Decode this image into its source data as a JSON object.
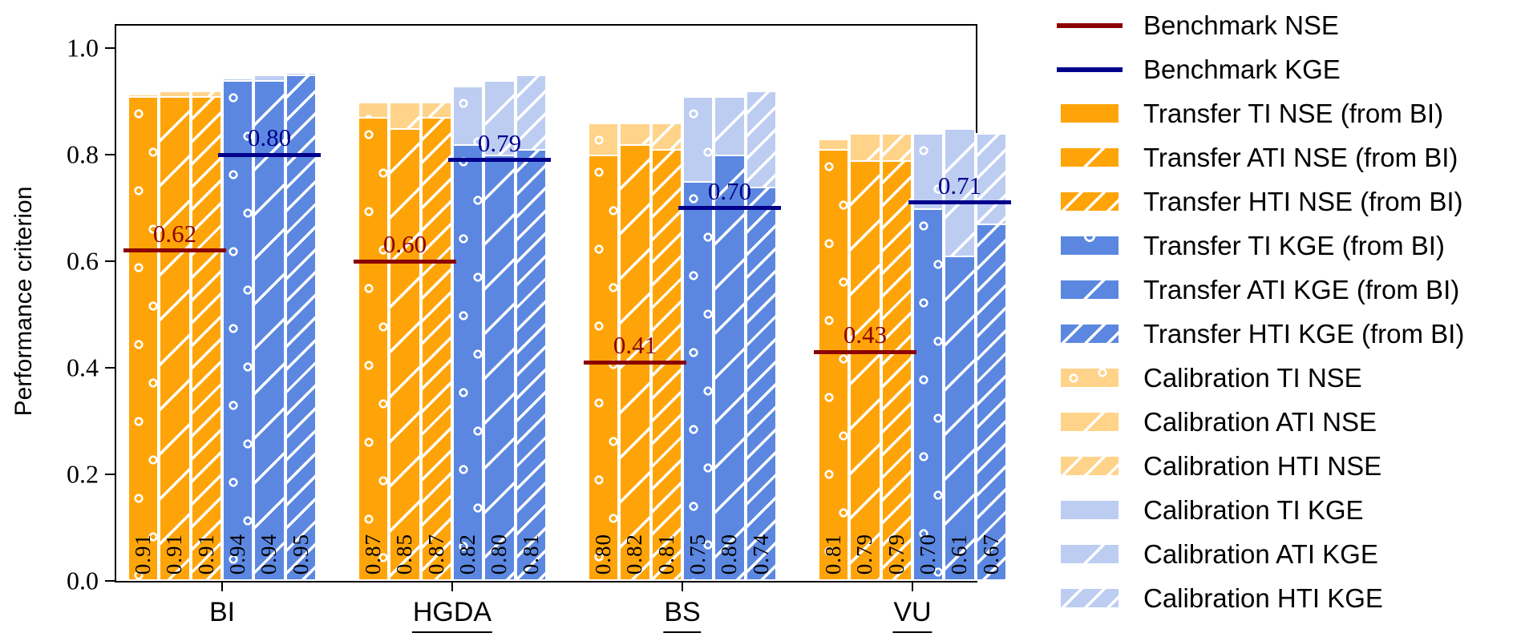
{
  "chart_data": {
    "type": "bar",
    "title": "",
    "ylabel": "Performance criterion",
    "ylim": [
      0.0,
      1.042
    ],
    "yticks": [
      0.0,
      0.2,
      0.4,
      0.6,
      0.8,
      1.0
    ],
    "grid": false,
    "legend_position": "right",
    "bar_order": [
      "TI NSE",
      "ATI NSE",
      "HTI NSE",
      "TI KGE",
      "ATI KGE",
      "HTI KGE"
    ],
    "hatch_by_index": [
      "circles",
      "sparse-diagonal",
      "dense-diagonal",
      "circles",
      "sparse-diagonal",
      "dense-diagonal"
    ],
    "groups": [
      {
        "category": "BI",
        "underlined": false,
        "transfer_values": [
          0.91,
          0.91,
          0.91,
          0.94,
          0.94,
          0.95
        ],
        "calibration_values": [
          0.915,
          0.92,
          0.92,
          0.945,
          0.95,
          0.955
        ],
        "benchmark_nse": 0.62,
        "benchmark_kge": 0.8
      },
      {
        "category": "HGDA",
        "underlined": true,
        "transfer_values": [
          0.87,
          0.85,
          0.87,
          0.82,
          0.8,
          0.81
        ],
        "calibration_values": [
          0.9,
          0.9,
          0.9,
          0.93,
          0.94,
          0.95
        ],
        "benchmark_nse": 0.6,
        "benchmark_kge": 0.79
      },
      {
        "category": "BS",
        "underlined": true,
        "transfer_values": [
          0.8,
          0.82,
          0.81,
          0.75,
          0.8,
          0.74
        ],
        "calibration_values": [
          0.86,
          0.86,
          0.86,
          0.91,
          0.91,
          0.92
        ],
        "benchmark_nse": 0.41,
        "benchmark_kge": 0.7
      },
      {
        "category": "VU",
        "underlined": true,
        "transfer_values": [
          0.81,
          0.79,
          0.79,
          0.7,
          0.61,
          0.67
        ],
        "calibration_values": [
          0.83,
          0.84,
          0.84,
          0.84,
          0.85,
          0.84
        ],
        "benchmark_nse": 0.43,
        "benchmark_kge": 0.71
      }
    ]
  },
  "colors": {
    "transfer_nse": "#FFA408",
    "calibration_nse": "#FFD389",
    "transfer_kge": "#5B87E0",
    "calibration_kge": "#BDCDF2",
    "benchmark_nse": "#8B0000",
    "benchmark_kge": "#00008B",
    "bar_edge": "#FFFFFF",
    "axis": "#000000"
  },
  "legend": {
    "items": [
      {
        "label": "Benchmark NSE",
        "swatch": "line",
        "color": "benchmark_nse",
        "hatch": "none"
      },
      {
        "label": "Benchmark KGE",
        "swatch": "line",
        "color": "benchmark_kge",
        "hatch": "none"
      },
      {
        "label": "Transfer TI NSE (from BI)",
        "swatch": "rect",
        "color": "transfer_nse",
        "hatch": "none"
      },
      {
        "label": "Transfer ATI NSE (from BI)",
        "swatch": "rect",
        "color": "transfer_nse",
        "hatch": "d1"
      },
      {
        "label": "Transfer HTI NSE (from BI)",
        "swatch": "rect",
        "color": "transfer_nse",
        "hatch": "d2"
      },
      {
        "label": "Transfer TI KGE (from BI)",
        "swatch": "rect",
        "color": "transfer_kge",
        "hatch": "oe"
      },
      {
        "label": "Transfer ATI KGE (from BI)",
        "swatch": "rect",
        "color": "transfer_kge",
        "hatch": "d1"
      },
      {
        "label": "Transfer HTI KGE (from BI)",
        "swatch": "rect",
        "color": "transfer_kge",
        "hatch": "d2"
      },
      {
        "label": "Calibration TI NSE",
        "swatch": "rect",
        "color": "calibration_nse",
        "hatch": "o2"
      },
      {
        "label": "Calibration ATI NSE",
        "swatch": "rect",
        "color": "calibration_nse",
        "hatch": "d1"
      },
      {
        "label": "Calibration HTI NSE",
        "swatch": "rect",
        "color": "calibration_nse",
        "hatch": "d2"
      },
      {
        "label": "Calibration TI KGE",
        "swatch": "rect",
        "color": "calibration_kge",
        "hatch": "none"
      },
      {
        "label": "Calibration ATI KGE",
        "swatch": "rect",
        "color": "calibration_kge",
        "hatch": "d1"
      },
      {
        "label": "Calibration HTI KGE",
        "swatch": "rect",
        "color": "calibration_kge",
        "hatch": "d2"
      }
    ]
  }
}
